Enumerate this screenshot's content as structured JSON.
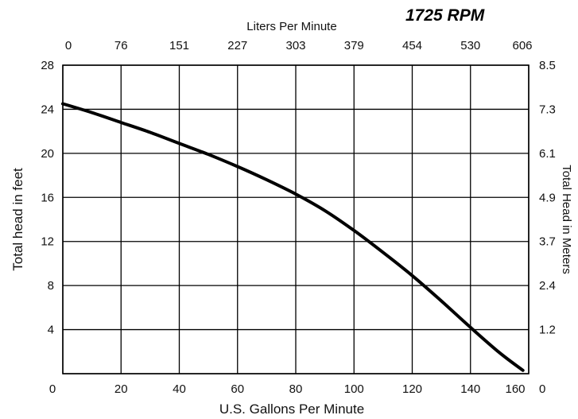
{
  "chart_data": {
    "type": "line",
    "annotation": "1725 RPM",
    "xlabel": "U.S. Gallons Per Minute",
    "ylabel": "Total head in feet",
    "x2label": "Liters Per Minute",
    "y2label": "Total Head in Meters",
    "xlim": [
      0,
      160
    ],
    "ylim": [
      0,
      28
    ],
    "x_ticks": [
      "0",
      "20",
      "40",
      "60",
      "80",
      "100",
      "120",
      "140",
      "160"
    ],
    "y_ticks": [
      "0",
      "4",
      "8",
      "12",
      "16",
      "20",
      "24",
      "28"
    ],
    "x2_ticks": [
      "0",
      "76",
      "151",
      "227",
      "303",
      "379",
      "454",
      "530",
      "606"
    ],
    "y2_ticks": [
      "0",
      "1.2",
      "2.4",
      "3.7",
      "4.9",
      "6.1",
      "7.3",
      "8.5"
    ],
    "grid": true,
    "series": [
      {
        "x": [
          0,
          10,
          20,
          30,
          40,
          50,
          60,
          70,
          80,
          90,
          100,
          110,
          120,
          130,
          140,
          150,
          158
        ],
        "y": [
          24.5,
          23.7,
          22.8,
          21.9,
          20.9,
          19.9,
          18.8,
          17.6,
          16.3,
          14.8,
          13.0,
          11.0,
          8.9,
          6.6,
          4.2,
          1.9,
          0.3
        ]
      }
    ]
  }
}
